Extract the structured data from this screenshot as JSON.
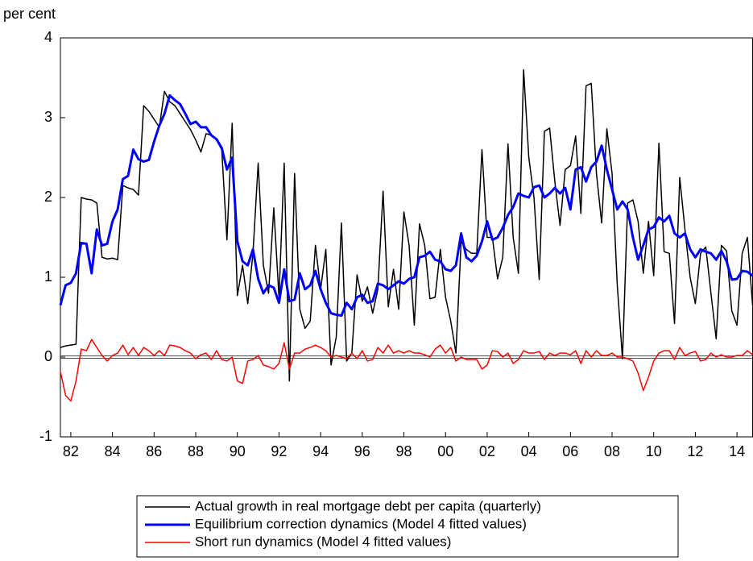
{
  "chart_data": {
    "type": "line",
    "y_label": "per cent",
    "categories": [
      null,
      null,
      "82",
      null,
      null,
      null,
      null,
      null,
      null,
      null,
      "84",
      null,
      null,
      null,
      null,
      null,
      null,
      null,
      "86",
      null,
      null,
      null,
      null,
      null,
      null,
      null,
      "88",
      null,
      null,
      null,
      null,
      null,
      null,
      null,
      "90",
      null,
      null,
      null,
      null,
      null,
      null,
      null,
      "92",
      null,
      null,
      null,
      null,
      null,
      null,
      null,
      "94",
      null,
      null,
      null,
      null,
      null,
      null,
      null,
      "96",
      null,
      null,
      null,
      null,
      null,
      null,
      null,
      "98",
      null,
      null,
      null,
      null,
      null,
      null,
      null,
      "00",
      null,
      null,
      null,
      null,
      null,
      null,
      null,
      "02",
      null,
      null,
      null,
      null,
      null,
      null,
      null,
      "04",
      null,
      null,
      null,
      null,
      null,
      null,
      null,
      "06",
      null,
      null,
      null,
      null,
      null,
      null,
      null,
      "08",
      null,
      null,
      null,
      null,
      null,
      null,
      null,
      "10",
      null,
      null,
      null,
      null,
      null,
      null,
      null,
      "12",
      null,
      null,
      null,
      null,
      null,
      null,
      null,
      "14",
      null,
      null,
      null
    ],
    "ylim": [
      -1,
      4
    ],
    "yticks": [
      -1,
      0,
      1,
      2,
      3,
      4
    ],
    "series": [
      {
        "name": "Actual growth in real mortgage debt per capita (quarterly)",
        "color": "#000000",
        "width": 1.5,
        "values": [
          0.12,
          0.14,
          0.15,
          0.16,
          2.0,
          1.98,
          1.97,
          1.93,
          1.25,
          1.23,
          1.24,
          1.22,
          2.15,
          2.12,
          2.1,
          2.03,
          3.15,
          3.08,
          2.98,
          2.88,
          3.33,
          3.2,
          3.15,
          3.05,
          2.95,
          2.85,
          2.72,
          2.57,
          2.8,
          2.78,
          2.72,
          2.6,
          1.47,
          2.93,
          0.77,
          1.15,
          0.67,
          1.3,
          2.43,
          1.15,
          0.8,
          1.87,
          0.75,
          2.43,
          -0.3,
          2.3,
          0.6,
          0.36,
          0.45,
          1.4,
          0.85,
          1.35,
          -0.1,
          0.25,
          1.68,
          -0.05,
          0.05,
          1.03,
          0.7,
          0.88,
          0.55,
          0.85,
          2.08,
          0.63,
          1.1,
          0.6,
          1.82,
          1.4,
          0.4,
          1.67,
          1.4,
          0.73,
          0.75,
          1.35,
          0.75,
          0.45,
          0.05,
          1.45,
          1.35,
          1.3,
          1.3,
          2.6,
          1.5,
          1.5,
          0.98,
          1.25,
          2.67,
          1.5,
          1.05,
          3.6,
          2.5,
          2.0,
          0.97,
          2.83,
          2.87,
          2.2,
          1.65,
          2.35,
          2.4,
          2.77,
          1.8,
          3.4,
          3.43,
          2.3,
          1.68,
          2.86,
          2.3,
          0.9,
          -0.02,
          1.93,
          1.97,
          1.7,
          1.05,
          1.7,
          1.02,
          2.68,
          1.32,
          1.3,
          0.42,
          2.25,
          1.6,
          1.0,
          0.67,
          1.3,
          1.38,
          0.8,
          0.23,
          1.4,
          1.33,
          0.58,
          0.4,
          1.3,
          1.5,
          0.65
        ]
      },
      {
        "name": "Equilibrium correction dynamics (Model 4 fitted values)",
        "color": "#0000ff",
        "width": 3,
        "values": [
          0.65,
          0.9,
          0.93,
          1.05,
          1.43,
          1.42,
          1.05,
          1.6,
          1.4,
          1.42,
          1.7,
          1.85,
          2.23,
          2.27,
          2.6,
          2.48,
          2.45,
          2.47,
          2.7,
          2.9,
          3.05,
          3.28,
          3.22,
          3.17,
          3.05,
          2.92,
          2.95,
          2.88,
          2.88,
          2.78,
          2.73,
          2.62,
          2.35,
          2.5,
          1.45,
          1.2,
          1.15,
          1.35,
          0.98,
          0.8,
          0.9,
          0.87,
          0.68,
          1.1,
          0.7,
          0.72,
          1.05,
          0.85,
          0.9,
          1.08,
          0.85,
          0.68,
          0.55,
          0.53,
          0.52,
          0.68,
          0.6,
          0.75,
          0.78,
          0.68,
          0.7,
          0.92,
          0.9,
          0.85,
          0.9,
          0.95,
          0.92,
          0.98,
          1.0,
          1.25,
          1.27,
          1.32,
          1.22,
          1.2,
          1.1,
          1.08,
          1.15,
          1.55,
          1.25,
          1.2,
          1.27,
          1.45,
          1.7,
          1.47,
          1.5,
          1.62,
          1.78,
          1.88,
          2.05,
          2.02,
          2.0,
          2.13,
          2.15,
          2.0,
          2.05,
          2.12,
          2.05,
          2.12,
          1.85,
          2.35,
          2.38,
          2.2,
          2.38,
          2.45,
          2.65,
          2.35,
          2.1,
          1.85,
          1.95,
          1.85,
          1.5,
          1.22,
          1.4,
          1.6,
          1.63,
          1.75,
          1.7,
          1.77,
          1.55,
          1.5,
          1.55,
          1.35,
          1.25,
          1.35,
          1.32,
          1.3,
          1.22,
          1.33,
          1.2,
          0.97,
          0.98,
          1.08,
          1.07,
          1.02
        ]
      },
      {
        "name": "Short run dynamics (Model 4 fitted values)",
        "color": "#ff0000",
        "width": 1.5,
        "values": [
          -0.18,
          -0.48,
          -0.55,
          -0.3,
          0.1,
          0.08,
          0.22,
          0.12,
          0.02,
          -0.05,
          0.02,
          0.05,
          0.15,
          0.03,
          0.12,
          0.02,
          0.12,
          0.08,
          0.02,
          0.08,
          0.02,
          0.15,
          0.14,
          0.12,
          0.08,
          0.05,
          -0.02,
          0.03,
          0.05,
          -0.03,
          0.08,
          -0.03,
          -0.05,
          0.0,
          -0.3,
          -0.33,
          -0.05,
          -0.03,
          0.02,
          -0.1,
          -0.12,
          -0.15,
          -0.08,
          0.18,
          -0.15,
          0.05,
          0.05,
          0.1,
          0.12,
          0.15,
          0.12,
          0.08,
          0.0,
          0.02,
          0.0,
          -0.02,
          0.05,
          -0.02,
          0.08,
          -0.05,
          -0.03,
          0.12,
          0.05,
          0.15,
          0.05,
          0.08,
          0.05,
          0.08,
          0.05,
          0.05,
          0.03,
          0.0,
          0.1,
          0.15,
          0.05,
          0.12,
          -0.05,
          0.0,
          -0.03,
          -0.03,
          -0.03,
          -0.15,
          -0.1,
          0.08,
          0.07,
          0.0,
          0.05,
          -0.08,
          -0.03,
          0.08,
          0.05,
          0.05,
          0.07,
          -0.03,
          0.05,
          0.02,
          0.05,
          0.05,
          0.03,
          0.08,
          -0.08,
          0.08,
          0.0,
          0.08,
          0.02,
          0.02,
          0.05,
          0.0,
          0.0,
          -0.02,
          -0.05,
          -0.2,
          -0.42,
          -0.25,
          -0.05,
          0.05,
          0.08,
          0.08,
          -0.03,
          0.12,
          0.02,
          0.05,
          0.07,
          -0.05,
          -0.03,
          0.05,
          0.0,
          0.03,
          0.0,
          0.0,
          0.02,
          0.02,
          0.08,
          0.03
        ]
      }
    ],
    "zero_line": true,
    "legend": "bottom"
  }
}
